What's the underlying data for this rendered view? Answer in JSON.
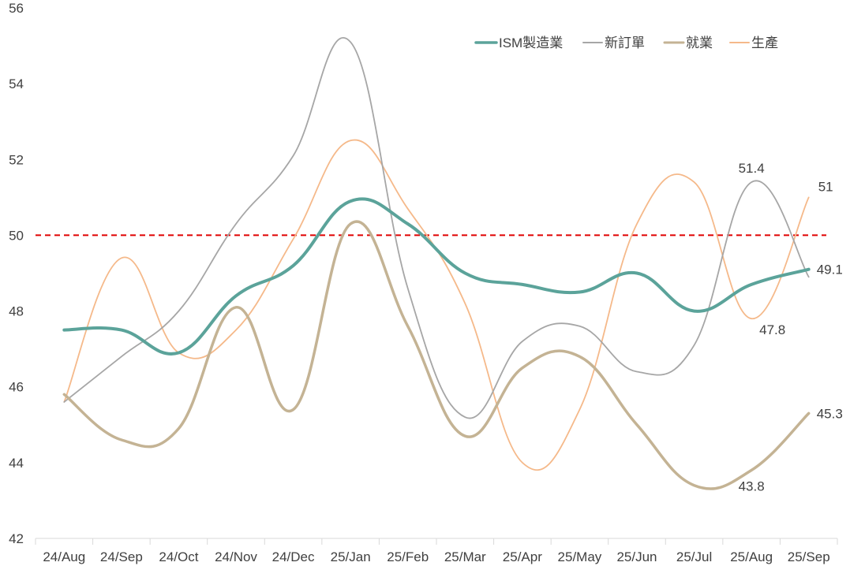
{
  "chart_data": {
    "type": "line",
    "title": "",
    "xlabel": "",
    "ylabel": "",
    "categories": [
      "24/Aug",
      "24/Sep",
      "24/Oct",
      "24/Nov",
      "24/Dec",
      "25/Jan",
      "25/Feb",
      "25/Mar",
      "25/Apr",
      "25/May",
      "25/Jun",
      "25/Jul",
      "25/Aug",
      "25/Sep"
    ],
    "ylim": [
      42,
      56
    ],
    "yticks": [
      42,
      44,
      46,
      48,
      50,
      52,
      54,
      56
    ],
    "reference_line": {
      "value": 50,
      "color": "#e00000",
      "style": "dashed"
    },
    "legend_position": "top-right",
    "grid": false,
    "series": [
      {
        "name": "ISM製造業",
        "color": "#5ba39a",
        "width": 4,
        "values": [
          47.5,
          47.5,
          46.9,
          48.4,
          49.2,
          50.9,
          50.3,
          49.0,
          48.7,
          48.5,
          49.0,
          48.0,
          48.7,
          49.1
        ]
      },
      {
        "name": "新訂單",
        "color": "#a6a6a6",
        "width": 1.8,
        "values": [
          45.6,
          46.8,
          48.0,
          50.3,
          52.1,
          55.1,
          48.6,
          45.2,
          47.2,
          47.6,
          46.4,
          47.1,
          51.4,
          48.9
        ]
      },
      {
        "name": "就業",
        "color": "#c4b394",
        "width": 3.5,
        "values": [
          45.8,
          44.6,
          44.9,
          48.1,
          45.4,
          50.3,
          47.6,
          44.7,
          46.5,
          46.8,
          45.0,
          43.4,
          43.8,
          45.3
        ]
      },
      {
        "name": "生產",
        "color": "#f5b98a",
        "width": 1.8,
        "values": [
          45.6,
          49.4,
          46.9,
          47.5,
          49.9,
          52.5,
          50.7,
          48.2,
          44.0,
          45.4,
          50.3,
          51.4,
          47.8,
          51.0
        ]
      }
    ],
    "annotations": [
      {
        "text": "51.4",
        "series": 1,
        "index": 12,
        "anchor": "above"
      },
      {
        "text": "51",
        "series": 3,
        "index": 13,
        "anchor": "right-up"
      },
      {
        "text": "49.1",
        "series": 0,
        "index": 13,
        "anchor": "right"
      },
      {
        "text": "47.8",
        "series": 3,
        "index": 12,
        "anchor": "right-below"
      },
      {
        "text": "45.3",
        "series": 2,
        "index": 13,
        "anchor": "right"
      },
      {
        "text": "43.8",
        "series": 2,
        "index": 12,
        "anchor": "below"
      }
    ]
  }
}
